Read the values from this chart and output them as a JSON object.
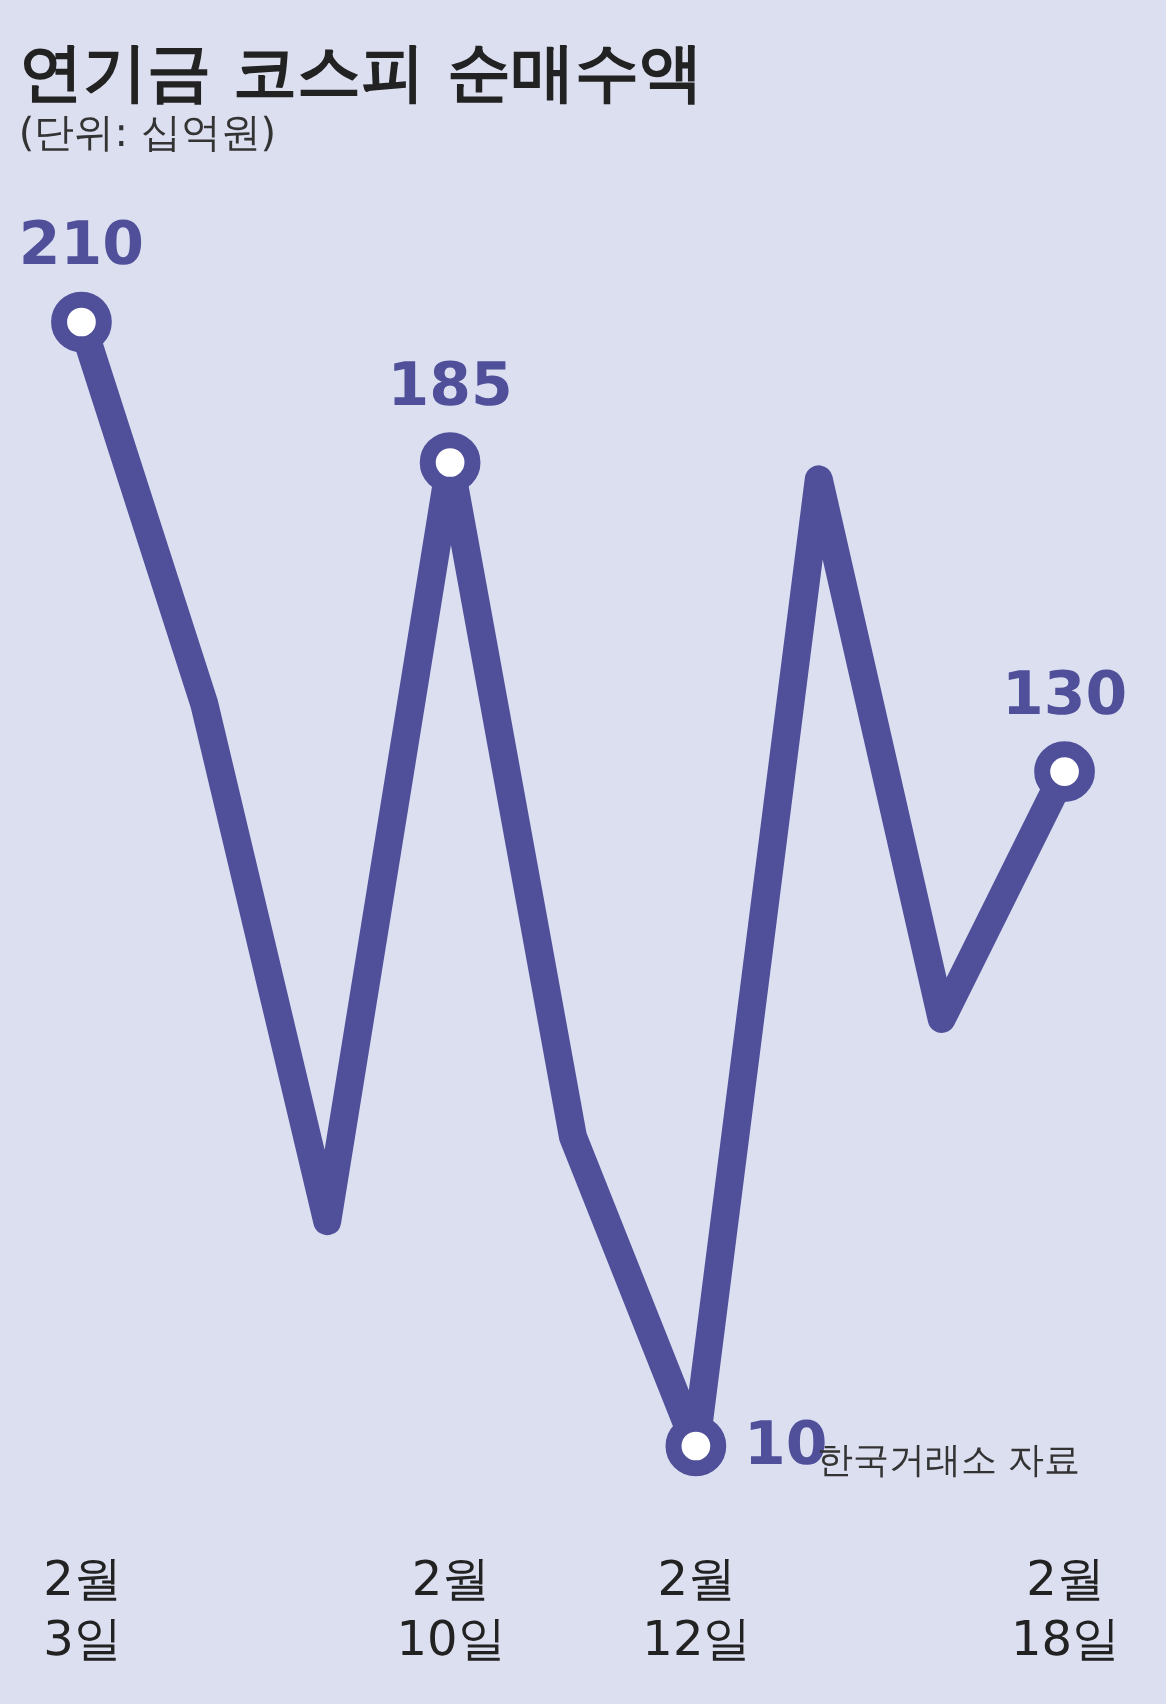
{
  "chart_data": {
    "type": "line",
    "title": "연기금 코스피 순매수액",
    "subtitle": "(단위: 십억원)",
    "categories": [
      "2월 3일",
      null,
      null,
      "2월 10일",
      null,
      "2월 12일",
      null,
      null,
      "2월 18일"
    ],
    "series": [
      {
        "color": "#4f4f9a",
        "values": [
          210,
          142,
          50,
          185,
          65,
          10,
          182,
          86,
          130
        ],
        "value_labels": [
          "210",
          null,
          null,
          "185",
          null,
          "10",
          null,
          null,
          "130"
        ]
      }
    ],
    "annotations": [
      "한국거래소 자료"
    ],
    "grid": false
  }
}
